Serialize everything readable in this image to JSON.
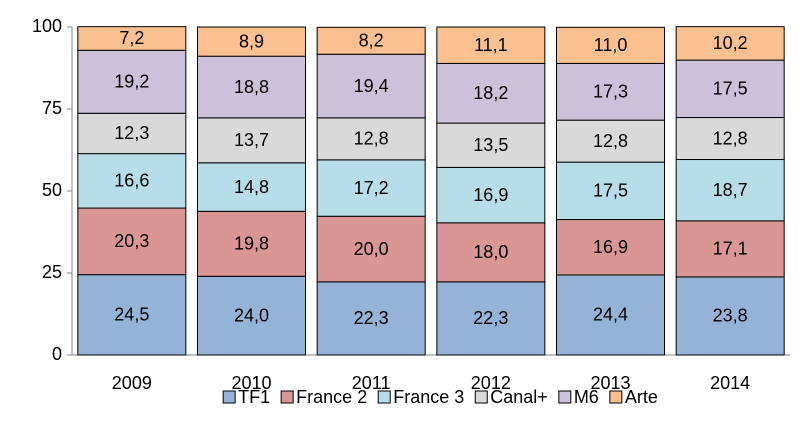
{
  "chart_data": {
    "type": "stacked_bar",
    "categories": [
      "2009",
      "2010",
      "2011",
      "2012",
      "2013",
      "2014"
    ],
    "series": [
      {
        "name": "TF1",
        "color": "#95b3d7",
        "values": [
          24.5,
          24.0,
          22.3,
          22.3,
          24.4,
          23.8
        ],
        "value_labels": [
          "24,5",
          "24,0",
          "22,3",
          "22,3",
          "24,4",
          "23,8"
        ]
      },
      {
        "name": "France 2",
        "color": "#da9694",
        "values": [
          20.3,
          19.8,
          20.0,
          18.0,
          16.9,
          17.1
        ],
        "value_labels": [
          "20,3",
          "19,8",
          "20,0",
          "18,0",
          "16,9",
          "17,1"
        ]
      },
      {
        "name": "France 3",
        "color": "#b7dee8",
        "values": [
          16.6,
          14.8,
          17.2,
          16.9,
          17.5,
          18.7
        ],
        "value_labels": [
          "16,6",
          "14,8",
          "17,2",
          "16,9",
          "17,5",
          "18,7"
        ]
      },
      {
        "name": "Canal+",
        "color": "#d9d9d9",
        "values": [
          12.3,
          13.7,
          12.8,
          13.5,
          12.8,
          12.8
        ],
        "value_labels": [
          "12,3",
          "13,7",
          "12,8",
          "13,5",
          "12,8",
          "12,8"
        ]
      },
      {
        "name": "M6",
        "color": "#ccc0da",
        "values": [
          19.2,
          18.8,
          19.4,
          18.2,
          17.3,
          17.5
        ],
        "value_labels": [
          "19,2",
          "18,8",
          "19,4",
          "18,2",
          "17,3",
          "17,5"
        ]
      },
      {
        "name": "Arte",
        "color": "#fac090",
        "values": [
          7.2,
          8.9,
          8.2,
          11.1,
          11.0,
          10.2
        ],
        "value_labels": [
          "7,2",
          "8,9",
          "8,2",
          "11,1",
          "11,0",
          "10,2"
        ]
      }
    ],
    "ylim": [
      0,
      100
    ],
    "yticks": [
      0,
      25,
      50,
      75,
      100
    ],
    "grid": false,
    "legend": "bottom"
  }
}
